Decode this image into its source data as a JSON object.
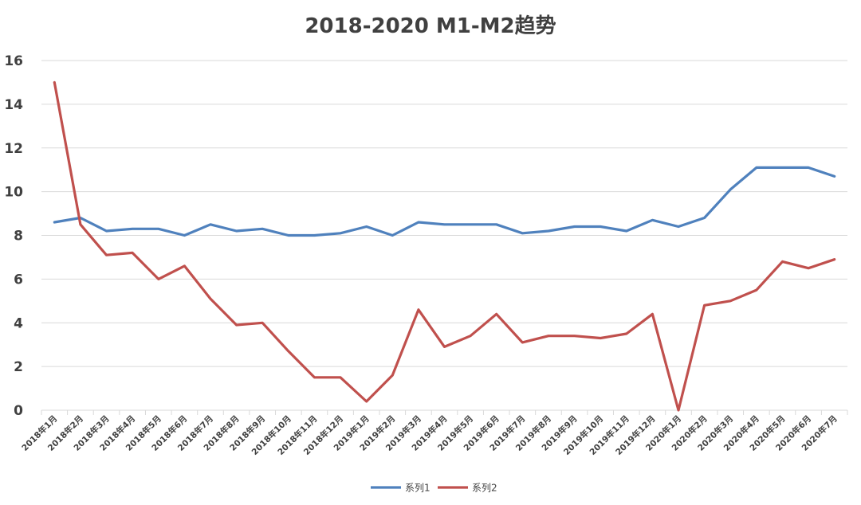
{
  "chart_data": {
    "type": "line",
    "title": "2018-2020 M1-M2趋势",
    "xlabel": "",
    "ylabel": "",
    "ylim": [
      0,
      16
    ],
    "yticks": [
      "0",
      "2",
      "4",
      "6",
      "8",
      "10",
      "12",
      "14",
      "16"
    ],
    "grid": true,
    "legend_position": "bottom",
    "categories": [
      "2018年1月",
      "2018年2月",
      "2018年3月",
      "2018年4月",
      "2018年5月",
      "2018年6月",
      "2018年7月",
      "2018年8月",
      "2018年9月",
      "2018年10月",
      "2018年11月",
      "2018年12月",
      "2019年1月",
      "2019年2月",
      "2019年3月",
      "2019年4月",
      "2019年5月",
      "2019年6月",
      "2019年7月",
      "2019年8月",
      "2019年9月",
      "2019年10月",
      "2019年11月",
      "2019年12月",
      "2020年1月",
      "2020年2月",
      "2020年3月",
      "2020年4月",
      "2020年5月",
      "2020年6月",
      "2020年7月"
    ],
    "series": [
      {
        "name": "系列1",
        "color": "#4f81bd",
        "values": [
          8.6,
          8.8,
          8.2,
          8.3,
          8.3,
          8.0,
          8.5,
          8.2,
          8.3,
          8.0,
          8.0,
          8.1,
          8.4,
          8.0,
          8.6,
          8.5,
          8.5,
          8.5,
          8.1,
          8.2,
          8.4,
          8.4,
          8.2,
          8.7,
          8.4,
          8.8,
          10.1,
          11.1,
          11.1,
          11.1,
          10.7
        ]
      },
      {
        "name": "系列2",
        "color": "#c0504d",
        "values": [
          15.0,
          8.5,
          7.1,
          7.2,
          6.0,
          6.6,
          5.1,
          3.9,
          4.0,
          2.7,
          1.5,
          1.5,
          0.4,
          1.6,
          4.6,
          2.9,
          3.4,
          4.4,
          3.1,
          3.4,
          3.4,
          3.3,
          3.5,
          4.4,
          0.0,
          4.8,
          5.0,
          5.5,
          6.8,
          6.5,
          6.9
        ]
      }
    ]
  }
}
